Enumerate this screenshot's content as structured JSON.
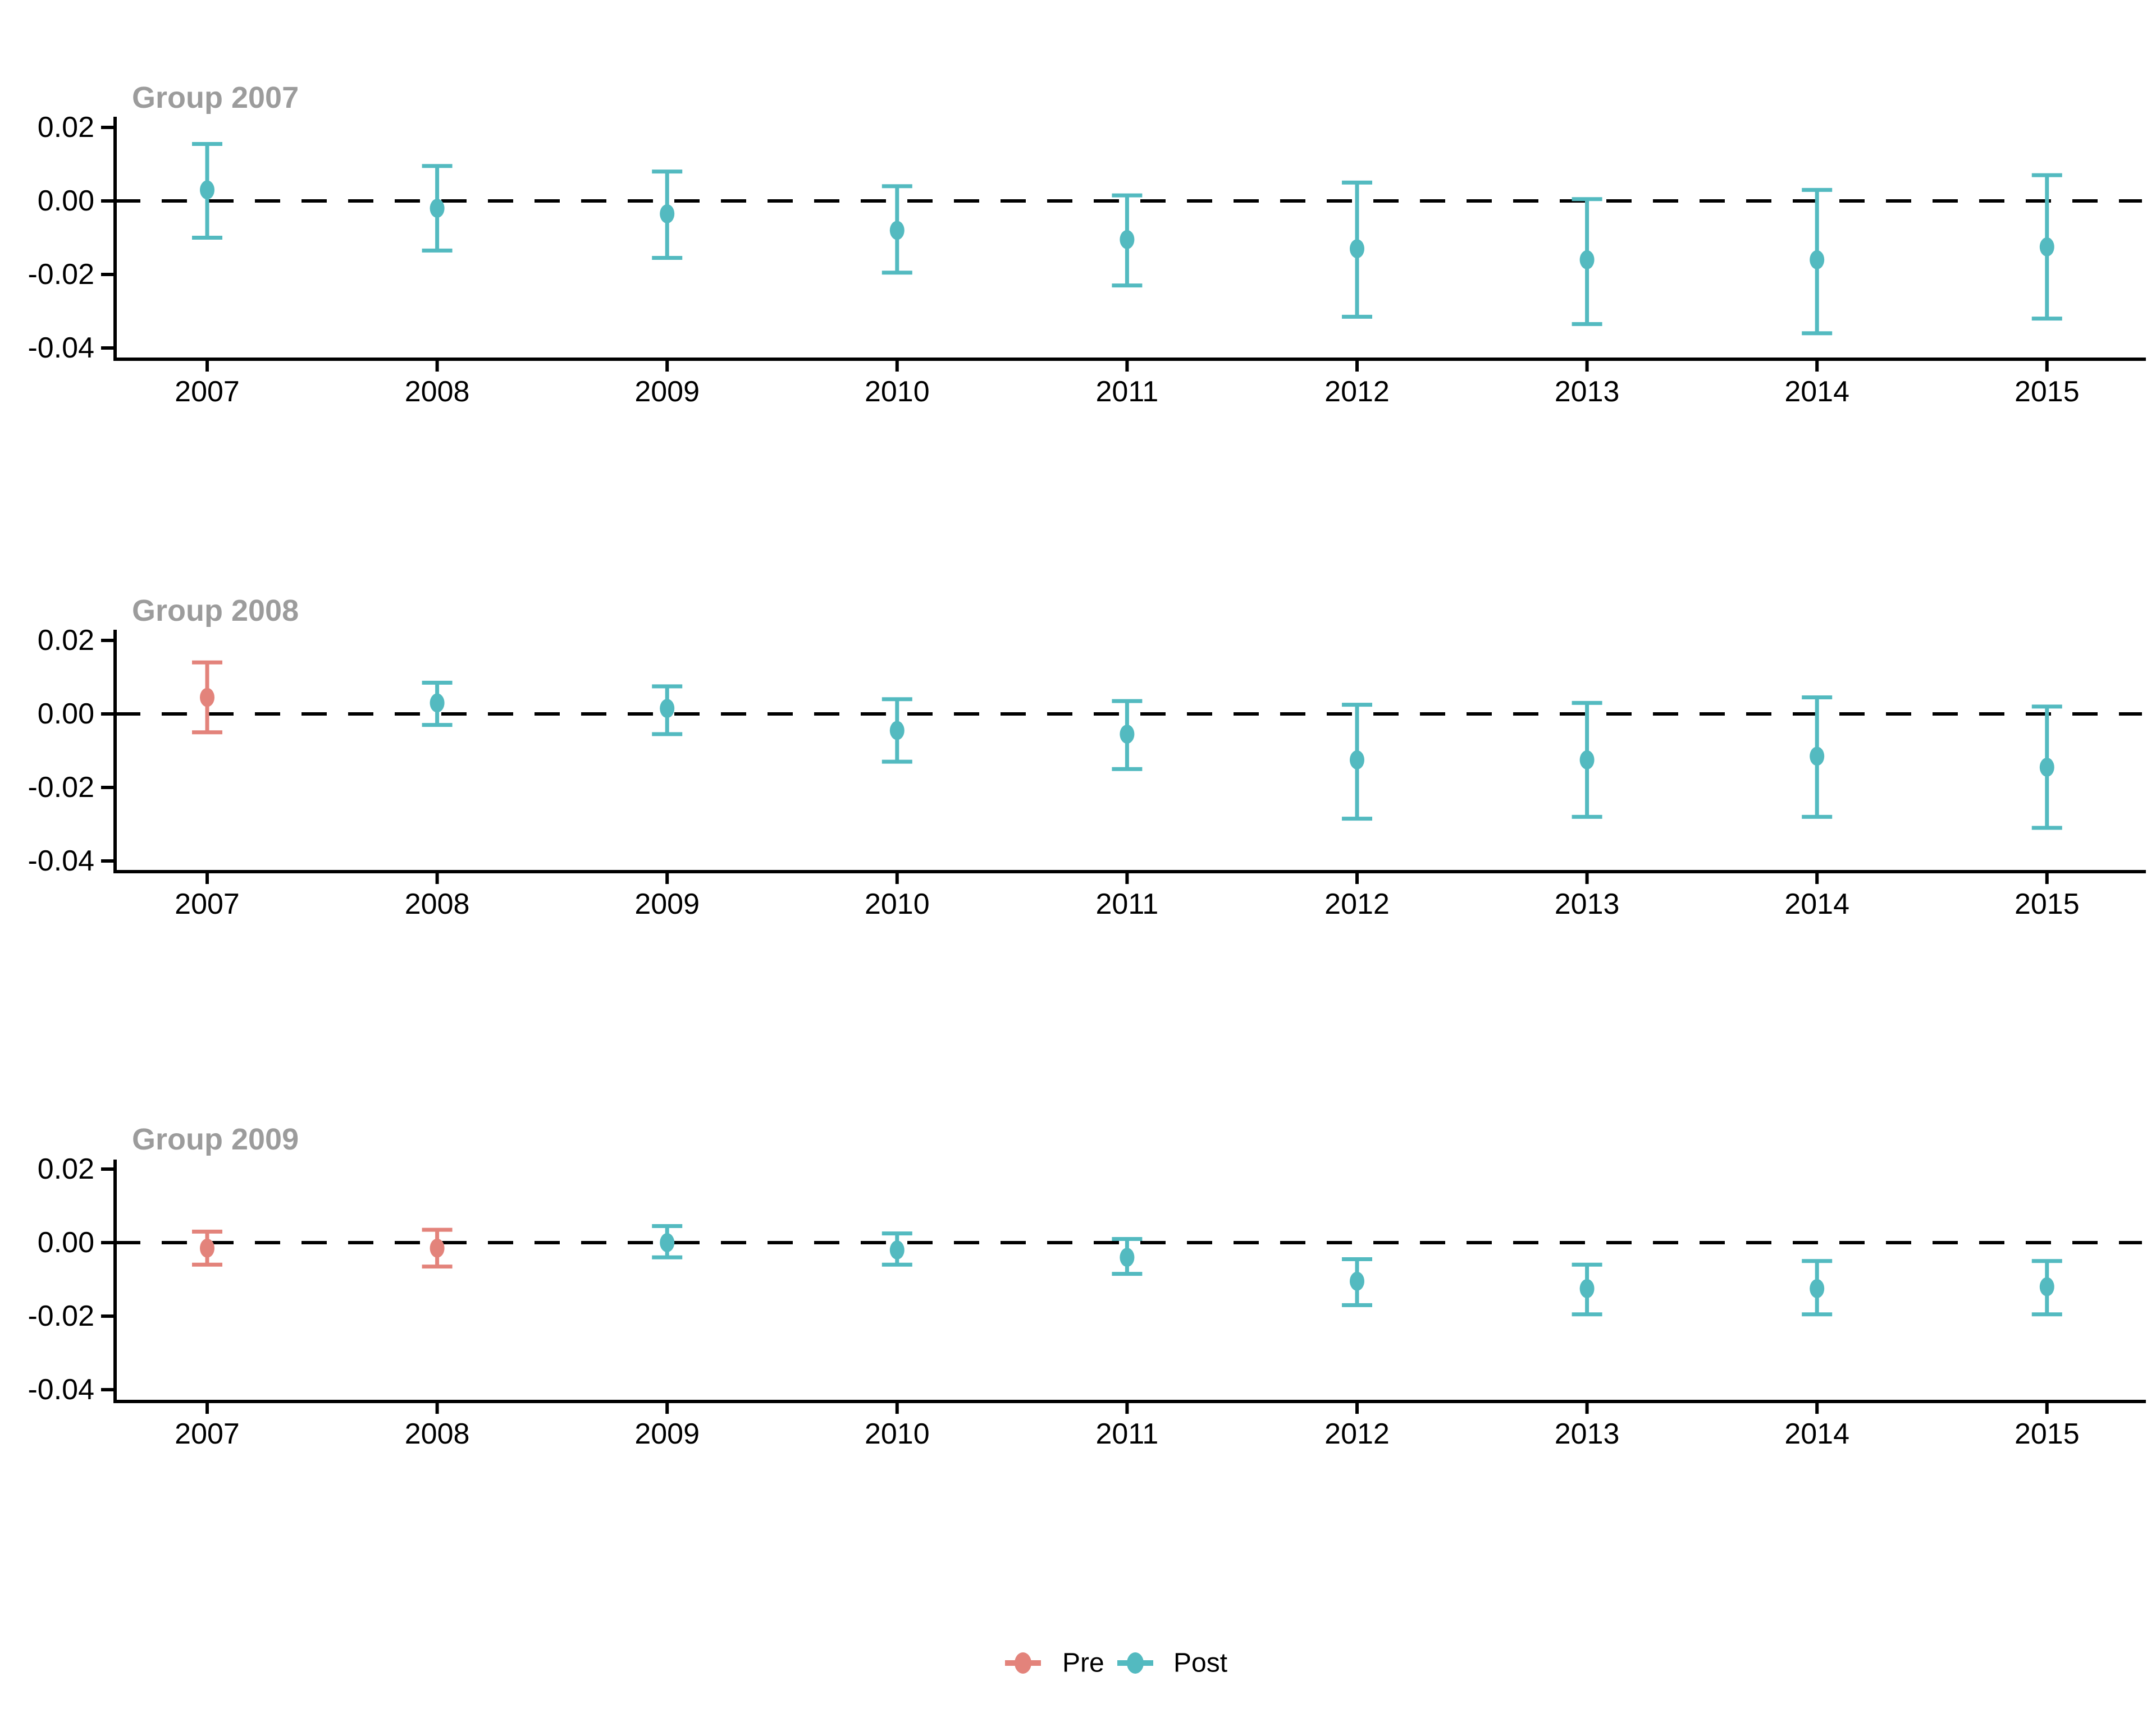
{
  "figure": {
    "background": "#FFFFFF",
    "kind": "event-study errorbar plot, three stacked cohort panels"
  },
  "colors": {
    "pre": "#E3837B",
    "post": "#53BAC0",
    "panel_title_gray": "#9C9C9C",
    "axis_black": "#000000",
    "zero_line_black": "#000000"
  },
  "legend": {
    "pre_label": "Pre",
    "post_label": "Post"
  },
  "axes": {
    "y_tick_labels": [
      "0.02",
      "0.00",
      "-0.02",
      "-0.04"
    ],
    "y_tick_values": [
      0.02,
      0.0,
      -0.02,
      -0.04
    ],
    "x_tick_labels": [
      "2007",
      "2008",
      "2009",
      "2010",
      "2011",
      "2012",
      "2013",
      "2014",
      "2015"
    ]
  },
  "chart_data": {
    "type": "scatter",
    "subtype": "pointrange-errorbar",
    "title": "",
    "xlabel": "",
    "ylabel": "",
    "x": [
      2007,
      2008,
      2009,
      2010,
      2011,
      2012,
      2013,
      2014,
      2015
    ],
    "ylim": [
      -0.045,
      0.022
    ],
    "grid": false,
    "legend_position": "bottom",
    "zero_reference_line": 0,
    "series_legend": [
      "Pre",
      "Post"
    ],
    "panels": [
      {
        "title": "Group 2007",
        "points": [
          {
            "year": 2007,
            "series": "Post",
            "est": 0.003,
            "lo": -0.01,
            "hi": 0.0155
          },
          {
            "year": 2008,
            "series": "Post",
            "est": -0.002,
            "lo": -0.0135,
            "hi": 0.0095
          },
          {
            "year": 2009,
            "series": "Post",
            "est": -0.0035,
            "lo": -0.0155,
            "hi": 0.008
          },
          {
            "year": 2010,
            "series": "Post",
            "est": -0.008,
            "lo": -0.0195,
            "hi": 0.004
          },
          {
            "year": 2011,
            "series": "Post",
            "est": -0.0105,
            "lo": -0.023,
            "hi": 0.0015
          },
          {
            "year": 2012,
            "series": "Post",
            "est": -0.013,
            "lo": -0.0315,
            "hi": 0.005
          },
          {
            "year": 2013,
            "series": "Post",
            "est": -0.016,
            "lo": -0.0335,
            "hi": 0.0005
          },
          {
            "year": 2014,
            "series": "Post",
            "est": -0.016,
            "lo": -0.036,
            "hi": 0.003
          },
          {
            "year": 2015,
            "series": "Post",
            "est": -0.0125,
            "lo": -0.032,
            "hi": 0.007
          }
        ]
      },
      {
        "title": "Group 2008",
        "points": [
          {
            "year": 2007,
            "series": "Pre",
            "est": 0.0045,
            "lo": -0.005,
            "hi": 0.014
          },
          {
            "year": 2008,
            "series": "Post",
            "est": 0.003,
            "lo": -0.003,
            "hi": 0.0085
          },
          {
            "year": 2009,
            "series": "Post",
            "est": 0.0015,
            "lo": -0.0055,
            "hi": 0.0075
          },
          {
            "year": 2010,
            "series": "Post",
            "est": -0.0045,
            "lo": -0.013,
            "hi": 0.004
          },
          {
            "year": 2011,
            "series": "Post",
            "est": -0.0055,
            "lo": -0.015,
            "hi": 0.0035
          },
          {
            "year": 2012,
            "series": "Post",
            "est": -0.0125,
            "lo": -0.0285,
            "hi": 0.0025
          },
          {
            "year": 2013,
            "series": "Post",
            "est": -0.0125,
            "lo": -0.028,
            "hi": 0.003
          },
          {
            "year": 2014,
            "series": "Post",
            "est": -0.0115,
            "lo": -0.028,
            "hi": 0.0045
          },
          {
            "year": 2015,
            "series": "Post",
            "est": -0.0145,
            "lo": -0.031,
            "hi": 0.002
          }
        ]
      },
      {
        "title": "Group 2009",
        "points": [
          {
            "year": 2007,
            "series": "Pre",
            "est": -0.0015,
            "lo": -0.006,
            "hi": 0.003
          },
          {
            "year": 2008,
            "series": "Pre",
            "est": -0.0015,
            "lo": -0.0065,
            "hi": 0.0035
          },
          {
            "year": 2009,
            "series": "Post",
            "est": 0.0,
            "lo": -0.004,
            "hi": 0.0045
          },
          {
            "year": 2010,
            "series": "Post",
            "est": -0.002,
            "lo": -0.006,
            "hi": 0.0025
          },
          {
            "year": 2011,
            "series": "Post",
            "est": -0.004,
            "lo": -0.0085,
            "hi": 0.001
          },
          {
            "year": 2012,
            "series": "Post",
            "est": -0.0105,
            "lo": -0.017,
            "hi": -0.0045
          },
          {
            "year": 2013,
            "series": "Post",
            "est": -0.0125,
            "lo": -0.0195,
            "hi": -0.006
          },
          {
            "year": 2014,
            "series": "Post",
            "est": -0.0125,
            "lo": -0.0195,
            "hi": -0.005
          },
          {
            "year": 2015,
            "series": "Post",
            "est": -0.012,
            "lo": -0.0195,
            "hi": -0.005
          }
        ]
      }
    ]
  }
}
